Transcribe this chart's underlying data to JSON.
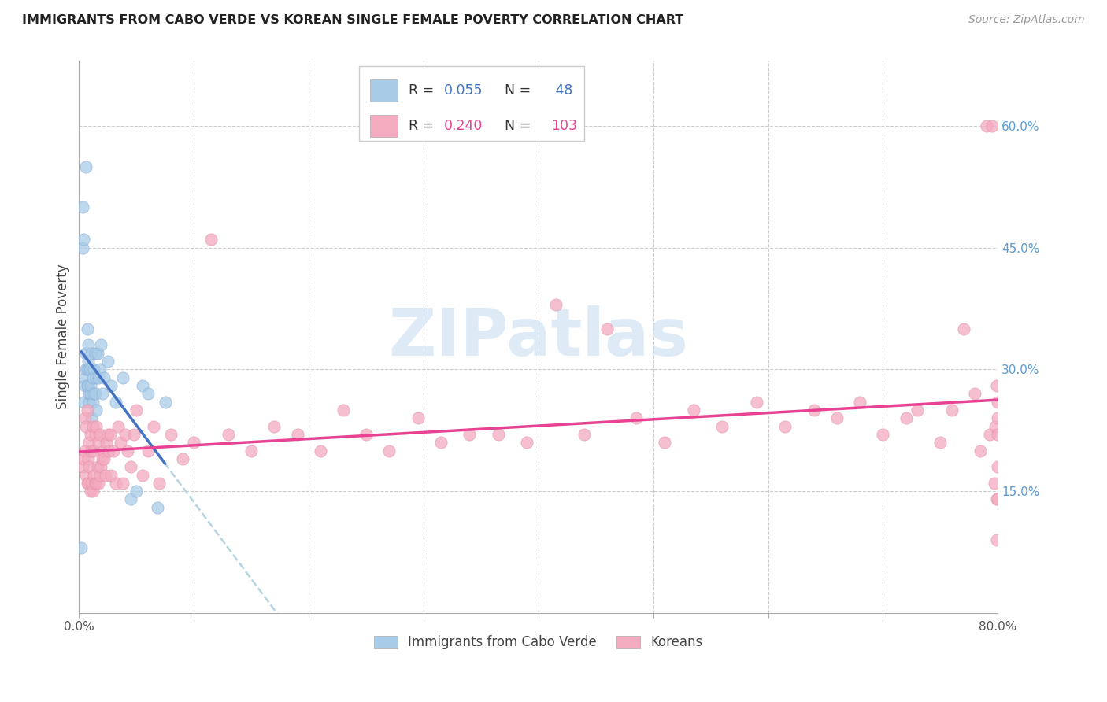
{
  "title": "IMMIGRANTS FROM CABO VERDE VS KOREAN SINGLE FEMALE POVERTY CORRELATION CHART",
  "source": "Source: ZipAtlas.com",
  "ylabel": "Single Female Poverty",
  "xlim": [
    0.0,
    0.8
  ],
  "ylim": [
    0.0,
    0.68
  ],
  "y_ticks_right": [
    0.15,
    0.3,
    0.45,
    0.6
  ],
  "y_tick_labels_right": [
    "15.0%",
    "30.0%",
    "45.0%",
    "60.0%"
  ],
  "x_ticks": [
    0.0,
    0.1,
    0.2,
    0.3,
    0.4,
    0.5,
    0.6,
    0.7,
    0.8
  ],
  "color_blue": "#A8CCE8",
  "color_pink": "#F4AABF",
  "color_blue_line": "#4472C4",
  "color_pink_line": "#E84393",
  "color_dashed": "#AAAAAA",
  "watermark": "ZIPatlas",
  "cabo_x": [
    0.002,
    0.003,
    0.003,
    0.004,
    0.004,
    0.005,
    0.005,
    0.006,
    0.006,
    0.006,
    0.007,
    0.007,
    0.007,
    0.008,
    0.008,
    0.008,
    0.009,
    0.009,
    0.009,
    0.01,
    0.01,
    0.01,
    0.011,
    0.011,
    0.012,
    0.012,
    0.013,
    0.013,
    0.014,
    0.014,
    0.015,
    0.015,
    0.016,
    0.017,
    0.018,
    0.019,
    0.02,
    0.022,
    0.025,
    0.028,
    0.032,
    0.038,
    0.045,
    0.05,
    0.055,
    0.06,
    0.068,
    0.075
  ],
  "cabo_y": [
    0.08,
    0.5,
    0.45,
    0.26,
    0.46,
    0.28,
    0.29,
    0.32,
    0.3,
    0.55,
    0.3,
    0.35,
    0.28,
    0.28,
    0.31,
    0.33,
    0.26,
    0.3,
    0.27,
    0.27,
    0.3,
    0.28,
    0.24,
    0.32,
    0.26,
    0.29,
    0.27,
    0.3,
    0.27,
    0.32,
    0.25,
    0.29,
    0.32,
    0.29,
    0.3,
    0.33,
    0.27,
    0.29,
    0.31,
    0.28,
    0.26,
    0.29,
    0.14,
    0.15,
    0.28,
    0.27,
    0.13,
    0.26
  ],
  "korean_x": [
    0.003,
    0.004,
    0.005,
    0.005,
    0.006,
    0.006,
    0.007,
    0.007,
    0.008,
    0.008,
    0.009,
    0.009,
    0.01,
    0.01,
    0.011,
    0.011,
    0.012,
    0.012,
    0.013,
    0.013,
    0.014,
    0.014,
    0.015,
    0.015,
    0.016,
    0.017,
    0.017,
    0.018,
    0.018,
    0.019,
    0.02,
    0.021,
    0.022,
    0.023,
    0.024,
    0.025,
    0.026,
    0.027,
    0.028,
    0.03,
    0.032,
    0.034,
    0.036,
    0.038,
    0.04,
    0.042,
    0.045,
    0.048,
    0.05,
    0.055,
    0.06,
    0.065,
    0.07,
    0.08,
    0.09,
    0.1,
    0.115,
    0.13,
    0.15,
    0.17,
    0.19,
    0.21,
    0.23,
    0.25,
    0.27,
    0.295,
    0.315,
    0.34,
    0.365,
    0.39,
    0.415,
    0.44,
    0.46,
    0.485,
    0.51,
    0.535,
    0.56,
    0.59,
    0.615,
    0.64,
    0.66,
    0.68,
    0.7,
    0.72,
    0.73,
    0.75,
    0.76,
    0.77,
    0.78,
    0.785,
    0.79,
    0.793,
    0.795,
    0.797,
    0.798,
    0.799,
    0.799,
    0.799,
    0.8,
    0.8,
    0.8,
    0.8,
    0.8
  ],
  "korean_y": [
    0.18,
    0.19,
    0.24,
    0.2,
    0.17,
    0.23,
    0.16,
    0.25,
    0.16,
    0.19,
    0.18,
    0.21,
    0.15,
    0.22,
    0.16,
    0.2,
    0.15,
    0.23,
    0.17,
    0.2,
    0.16,
    0.22,
    0.16,
    0.23,
    0.18,
    0.16,
    0.21,
    0.17,
    0.22,
    0.18,
    0.19,
    0.2,
    0.19,
    0.17,
    0.21,
    0.22,
    0.2,
    0.22,
    0.17,
    0.2,
    0.16,
    0.23,
    0.21,
    0.16,
    0.22,
    0.2,
    0.18,
    0.22,
    0.25,
    0.17,
    0.2,
    0.23,
    0.16,
    0.22,
    0.19,
    0.21,
    0.46,
    0.22,
    0.2,
    0.23,
    0.22,
    0.2,
    0.25,
    0.22,
    0.2,
    0.24,
    0.21,
    0.22,
    0.22,
    0.21,
    0.38,
    0.22,
    0.35,
    0.24,
    0.21,
    0.25,
    0.23,
    0.26,
    0.23,
    0.25,
    0.24,
    0.26,
    0.22,
    0.24,
    0.25,
    0.21,
    0.25,
    0.35,
    0.27,
    0.2,
    0.6,
    0.22,
    0.6,
    0.16,
    0.23,
    0.14,
    0.09,
    0.28,
    0.14,
    0.24,
    0.26,
    0.18,
    0.22
  ]
}
